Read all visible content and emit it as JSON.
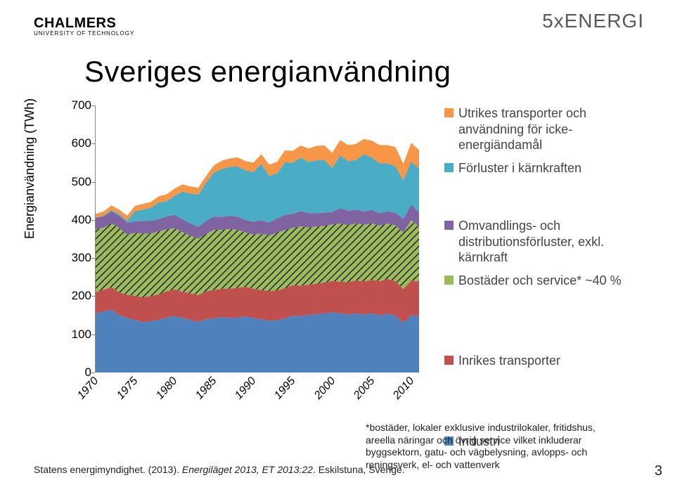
{
  "header": {
    "brand": "CHALMERS",
    "sub": "UNIVERSITY OF TECHNOLOGY",
    "top_right": "5xENERGI"
  },
  "title": "Sveriges energianvändning",
  "chart": {
    "type": "area",
    "yaxis_label": "Energianvändning (TWh)",
    "ylim": [
      0,
      700
    ],
    "ytick_step": 100,
    "yticks": [
      0,
      100,
      200,
      300,
      400,
      500,
      600,
      700
    ],
    "xticks": [
      "1970",
      "1975",
      "1980",
      "1985",
      "1990",
      "1995",
      "2000",
      "2005",
      "2010"
    ],
    "series": [
      {
        "name": "industri",
        "color": "#4f81bd",
        "values": [
          155,
          160,
          165,
          150,
          143,
          138,
          132,
          135,
          138,
          144,
          148,
          143,
          138,
          132,
          140,
          142,
          145,
          143,
          144,
          147,
          143,
          139,
          136,
          137,
          142,
          149,
          148,
          151,
          153,
          155,
          158,
          155,
          152,
          155,
          152,
          155,
          150,
          154,
          150,
          130,
          150,
          148
        ]
      },
      {
        "name": "inrikes",
        "color": "#c0504d",
        "values": [
          56,
          57,
          59,
          60,
          61,
          63,
          65,
          66,
          67,
          69,
          70,
          69,
          70,
          71,
          73,
          74,
          75,
          77,
          78,
          78,
          77,
          77,
          78,
          78,
          79,
          80,
          80,
          79,
          80,
          81,
          82,
          83,
          85,
          86,
          87,
          88,
          89,
          91,
          90,
          89,
          91,
          90
        ]
      },
      {
        "name": "bostader",
        "color": "#9bbb59",
        "hatch": true,
        "values": [
          165,
          163,
          167,
          168,
          158,
          165,
          167,
          163,
          165,
          162,
          160,
          156,
          150,
          148,
          150,
          158,
          154,
          156,
          152,
          142,
          142,
          148,
          145,
          152,
          152,
          150,
          155,
          150,
          150,
          148,
          148,
          152,
          149,
          150,
          148,
          148,
          146,
          145,
          146,
          148,
          158,
          145
        ]
      },
      {
        "name": "omvandling",
        "color": "#8064a2",
        "values": [
          30,
          29,
          32,
          33,
          31,
          30,
          33,
          34,
          32,
          34,
          35,
          34,
          33,
          31,
          34,
          35,
          34,
          35,
          34,
          33,
          33,
          35,
          34,
          37,
          40,
          37,
          40,
          38,
          35,
          35,
          33,
          41,
          38,
          36,
          35,
          35,
          33,
          32,
          33,
          36,
          41,
          37
        ]
      },
      {
        "name": "forluster",
        "color": "#4bacc6",
        "values": [
          0,
          2,
          3,
          4,
          5,
          27,
          30,
          34,
          44,
          40,
          50,
          72,
          78,
          84,
          100,
          115,
          125,
          128,
          132,
          130,
          130,
          148,
          122,
          118,
          138,
          134,
          140,
          134,
          138,
          138,
          115,
          138,
          130,
          130,
          150,
          138,
          130,
          126,
          122,
          100,
          112,
          115
        ]
      },
      {
        "name": "utrikes",
        "color": "#f79646",
        "values": [
          10,
          11,
          12,
          12,
          13,
          14,
          15,
          15,
          16,
          18,
          19,
          19,
          19,
          18,
          18,
          19,
          22,
          22,
          24,
          24,
          25,
          25,
          30,
          30,
          31,
          31,
          32,
          35,
          38,
          38,
          40,
          40,
          42,
          42,
          40,
          44,
          48,
          48,
          50,
          44,
          50,
          48
        ]
      }
    ],
    "background_color": "#ffffff"
  },
  "legend": {
    "spacer1": 50,
    "spacer2": 82,
    "items": [
      {
        "color": "#f79646",
        "label": "Utrikes transporter och användning för icke-energiändamål"
      },
      {
        "color": "#4bacc6",
        "label": "Förluster i kärnkraften"
      },
      {
        "color": "#8064a2",
        "label": "Omvandlings- och distributionsförluster, exkl. kärnkraft"
      },
      {
        "color": "#9bbb59",
        "label": "Bostäder och service* ~40 %"
      },
      {
        "color": "#c0504d",
        "label": "Inrikes transporter"
      },
      {
        "color": "#4f81bd",
        "label": "Industri"
      }
    ]
  },
  "citation": {
    "prefix": "Statens energimyndighet. (2013). ",
    "title_italic": "Energiläget 2013, ET 2013:22",
    "suffix": ". Eskilstuna, Sverige."
  },
  "footnote": "*bostäder, lokaler exklusive industrilokaler, fritidshus, areella näringar och övrig service vilket inkluderar byggsektorn, gatu- och vägbelysning, avlopps- och reningsverk, el- och vattenverk",
  "page_number": "3"
}
